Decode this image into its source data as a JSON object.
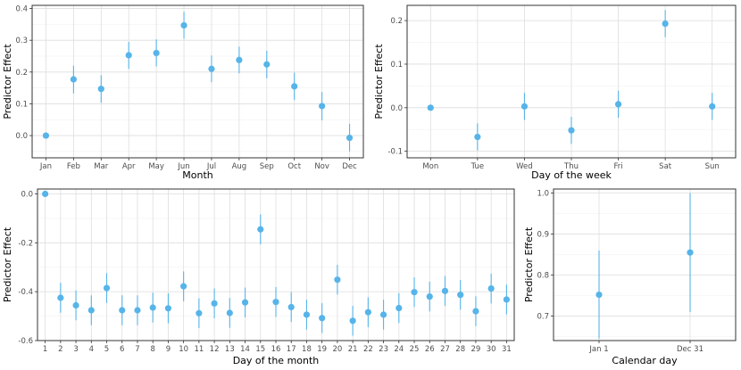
{
  "colors": {
    "point": "#56b4e9",
    "grid_major": "#dedede",
    "grid_minor": "#efefef",
    "border": "#333333",
    "background": "#ffffff"
  },
  "chart_data": [
    {
      "type": "scatter",
      "subtype": "point-with-error-bars",
      "xlabel": "Month",
      "ylabel": "Predictor Effect",
      "categories": [
        "Jan",
        "Feb",
        "Mar",
        "Apr",
        "May",
        "Jun",
        "Jul",
        "Aug",
        "Sep",
        "Oct",
        "Nov",
        "Dec"
      ],
      "values": [
        0.0,
        0.177,
        0.147,
        0.253,
        0.26,
        0.347,
        0.21,
        0.238,
        0.224,
        0.155,
        0.093,
        -0.007
      ],
      "lower": [
        0.0,
        0.133,
        0.103,
        0.21,
        0.218,
        0.305,
        0.168,
        0.196,
        0.18,
        0.112,
        0.048,
        -0.05
      ],
      "upper": [
        0.0,
        0.22,
        0.19,
        0.295,
        0.303,
        0.39,
        0.252,
        0.28,
        0.267,
        0.198,
        0.137,
        0.037
      ],
      "ylim": [
        -0.07,
        0.41
      ],
      "yticks": [
        0.0,
        0.1,
        0.2,
        0.3,
        0.4
      ],
      "ytick_labels": [
        "0.0",
        "0.1",
        "0.2",
        "0.3",
        "0.4"
      ],
      "grid": true
    },
    {
      "type": "scatter",
      "subtype": "point-with-error-bars",
      "xlabel": "Day of the week",
      "ylabel": "Predictor Effect",
      "categories": [
        "Mon",
        "Tue",
        "Wed",
        "Thu",
        "Fri",
        "Sat",
        "Sun"
      ],
      "values": [
        0.0,
        -0.067,
        0.003,
        -0.052,
        0.008,
        0.193,
        0.003
      ],
      "lower": [
        0.0,
        -0.098,
        -0.028,
        -0.083,
        -0.023,
        0.162,
        -0.028
      ],
      "upper": [
        0.0,
        -0.036,
        0.034,
        -0.021,
        0.039,
        0.224,
        0.034
      ],
      "ylim": [
        -0.115,
        0.235
      ],
      "yticks": [
        -0.1,
        0.0,
        0.1,
        0.2
      ],
      "ytick_labels": [
        "-0.1",
        "0.0",
        "0.1",
        "0.2"
      ],
      "grid": true
    },
    {
      "type": "scatter",
      "subtype": "point-with-error-bars",
      "xlabel": "Day of the month",
      "ylabel": "Predictor Effect",
      "categories": [
        "1",
        "2",
        "3",
        "4",
        "5",
        "6",
        "7",
        "8",
        "9",
        "10",
        "11",
        "12",
        "13",
        "14",
        "15",
        "16",
        "17",
        "18",
        "19",
        "20",
        "21",
        "22",
        "23",
        "24",
        "25",
        "26",
        "27",
        "28",
        "29",
        "30",
        "31"
      ],
      "values": [
        0.0,
        -0.425,
        -0.456,
        -0.476,
        -0.385,
        -0.476,
        -0.476,
        -0.465,
        -0.468,
        -0.378,
        -0.488,
        -0.448,
        -0.487,
        -0.444,
        -0.145,
        -0.442,
        -0.463,
        -0.494,
        -0.508,
        -0.351,
        -0.519,
        -0.484,
        -0.494,
        -0.467,
        -0.402,
        -0.42,
        -0.397,
        -0.413,
        -0.48,
        -0.387,
        -0.432
      ],
      "lower": [
        0.0,
        -0.486,
        -0.517,
        -0.537,
        -0.446,
        -0.537,
        -0.537,
        -0.526,
        -0.529,
        -0.439,
        -0.549,
        -0.509,
        -0.548,
        -0.505,
        -0.206,
        -0.503,
        -0.524,
        -0.555,
        -0.569,
        -0.412,
        -0.58,
        -0.545,
        -0.555,
        -0.528,
        -0.463,
        -0.481,
        -0.458,
        -0.474,
        -0.541,
        -0.448,
        -0.493
      ],
      "upper": [
        0.0,
        -0.364,
        -0.395,
        -0.415,
        -0.324,
        -0.415,
        -0.415,
        -0.404,
        -0.407,
        -0.317,
        -0.427,
        -0.387,
        -0.426,
        -0.383,
        -0.084,
        -0.381,
        -0.402,
        -0.433,
        -0.447,
        -0.29,
        -0.458,
        -0.423,
        -0.433,
        -0.406,
        -0.341,
        -0.359,
        -0.336,
        -0.352,
        -0.419,
        -0.326,
        -0.371
      ],
      "ylim": [
        -0.6,
        0.02
      ],
      "yticks": [
        -0.6,
        -0.4,
        -0.2,
        0.0
      ],
      "ytick_labels": [
        "-0.6",
        "-0.4",
        "-0.2",
        "0.0"
      ],
      "grid": true
    },
    {
      "type": "scatter",
      "subtype": "point-with-error-bars",
      "xlabel": "Calendar day",
      "ylabel": "Predictor Effect",
      "categories": [
        "Jan 1",
        "Dec 31"
      ],
      "values": [
        0.752,
        0.855
      ],
      "lower": [
        0.645,
        0.71
      ],
      "upper": [
        0.86,
        1.0
      ],
      "ylim": [
        0.64,
        1.01
      ],
      "yticks": [
        0.7,
        0.8,
        0.9,
        1.0
      ],
      "ytick_labels": [
        "0.7",
        "0.8",
        "0.9",
        "1.0"
      ],
      "grid": true
    }
  ]
}
